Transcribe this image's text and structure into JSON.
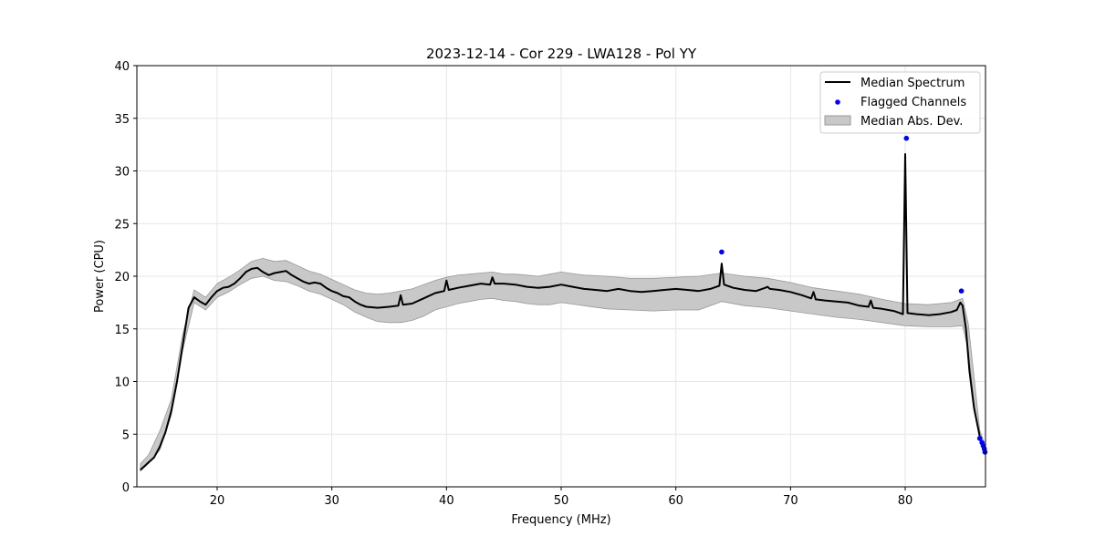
{
  "chart_data": {
    "type": "line",
    "title": "2023-12-14 - Cor 229 - LWA128 - Pol YY",
    "xlabel": "Frequency (MHz)",
    "ylabel": "Power (CPU)",
    "xlim": [
      13.0,
      87.0
    ],
    "ylim": [
      0,
      40
    ],
    "xticks": [
      20,
      30,
      40,
      50,
      60,
      70,
      80
    ],
    "yticks": [
      0,
      5,
      10,
      15,
      20,
      25,
      30,
      35,
      40
    ],
    "xtick_labels": [
      "20",
      "30",
      "40",
      "50",
      "60",
      "70",
      "80"
    ],
    "ytick_labels": [
      "0",
      "5",
      "10",
      "15",
      "20",
      "25",
      "30",
      "35",
      "40"
    ],
    "grid": true,
    "legend_position": "upper-right",
    "legend": [
      "Median Spectrum",
      "Flagged Channels",
      "Median Abs. Dev."
    ],
    "colors": {
      "median": "#000000",
      "flagged": "#0000ff",
      "band_fill": "#c8c8c8",
      "band_edge": "#999999",
      "grid": "#e6e6e6"
    },
    "median_spectrum": {
      "x": [
        13.3,
        13.6,
        14.0,
        14.5,
        15.0,
        15.5,
        16.0,
        16.5,
        17.0,
        17.5,
        18.0,
        18.5,
        19.0,
        19.5,
        20.0,
        20.5,
        21.0,
        21.5,
        22.0,
        22.5,
        23.0,
        23.5,
        24.0,
        24.5,
        25.0,
        25.5,
        26.0,
        26.5,
        27.0,
        27.5,
        28.0,
        28.5,
        29.0,
        29.5,
        30.0,
        30.5,
        31.0,
        31.5,
        32.0,
        32.5,
        33.0,
        34.0,
        35.0,
        35.8,
        36.0,
        36.2,
        37.0,
        38.0,
        39.0,
        39.8,
        40.0,
        40.2,
        41.0,
        42.0,
        43.0,
        43.8,
        44.0,
        44.2,
        45.0,
        46.0,
        47.0,
        48.0,
        49.0,
        50.0,
        51.0,
        52.0,
        53.0,
        54.0,
        55.0,
        56.0,
        57.0,
        58.0,
        59.0,
        60.0,
        61.0,
        62.0,
        63.0,
        63.8,
        64.0,
        64.2,
        65.0,
        66.0,
        67.0,
        67.8,
        68.0,
        68.2,
        69.0,
        70.0,
        71.0,
        71.8,
        72.0,
        72.2,
        73.0,
        74.0,
        75.0,
        76.0,
        76.8,
        77.0,
        77.2,
        78.0,
        79.0,
        79.8,
        80.0,
        80.2,
        81.0,
        82.0,
        83.0,
        84.0,
        84.5,
        84.8,
        85.0,
        85.3,
        85.6,
        86.0,
        86.5,
        86.8,
        87.0
      ],
      "y": [
        1.6,
        1.9,
        2.3,
        2.8,
        3.8,
        5.2,
        7.2,
        10.0,
        13.5,
        17.0,
        18.0,
        17.6,
        17.3,
        18.0,
        18.6,
        18.9,
        19.0,
        19.3,
        19.8,
        20.4,
        20.7,
        20.8,
        20.4,
        20.1,
        20.3,
        20.4,
        20.5,
        20.1,
        19.8,
        19.5,
        19.3,
        19.4,
        19.3,
        18.9,
        18.6,
        18.4,
        18.1,
        18.0,
        17.6,
        17.3,
        17.1,
        17.0,
        17.1,
        17.2,
        18.2,
        17.3,
        17.4,
        17.9,
        18.4,
        18.6,
        19.6,
        18.7,
        18.9,
        19.1,
        19.3,
        19.2,
        19.9,
        19.3,
        19.3,
        19.2,
        19.0,
        18.9,
        19.0,
        19.2,
        19.0,
        18.8,
        18.7,
        18.6,
        18.8,
        18.6,
        18.5,
        18.6,
        18.7,
        18.8,
        18.7,
        18.6,
        18.8,
        19.1,
        21.2,
        19.2,
        18.9,
        18.7,
        18.6,
        18.9,
        19.0,
        18.8,
        18.7,
        18.5,
        18.2,
        17.9,
        18.5,
        17.8,
        17.7,
        17.6,
        17.5,
        17.2,
        17.1,
        17.7,
        17.0,
        16.9,
        16.7,
        16.4,
        31.6,
        16.5,
        16.4,
        16.3,
        16.4,
        16.6,
        16.8,
        17.5,
        17.2,
        15.0,
        11.0,
        7.5,
        4.8,
        3.8,
        3.3
      ]
    },
    "mad_band": {
      "x": [
        13.3,
        14.0,
        15.0,
        16.0,
        17.0,
        18.0,
        19.0,
        20.0,
        21.0,
        22.0,
        23.0,
        24.0,
        25.0,
        26.0,
        27.0,
        28.0,
        29.0,
        30.0,
        31.0,
        32.0,
        33.0,
        34.0,
        35.0,
        36.0,
        37.0,
        38.0,
        39.0,
        40.0,
        41.0,
        42.0,
        43.0,
        44.0,
        45.0,
        46.0,
        47.0,
        48.0,
        49.0,
        50.0,
        52.0,
        54.0,
        56.0,
        58.0,
        60.0,
        62.0,
        64.0,
        66.0,
        68.0,
        70.0,
        72.0,
        74.0,
        76.0,
        78.0,
        80.0,
        82.0,
        84.0,
        85.0,
        85.5,
        86.0,
        86.5,
        87.0
      ],
      "low": [
        1.5,
        2.2,
        3.5,
        6.8,
        13.0,
        17.5,
        16.8,
        18.0,
        18.5,
        19.2,
        19.8,
        20.0,
        19.6,
        19.5,
        19.1,
        18.6,
        18.3,
        17.8,
        17.3,
        16.6,
        16.1,
        15.7,
        15.6,
        15.6,
        15.8,
        16.2,
        16.8,
        17.1,
        17.4,
        17.6,
        17.8,
        17.9,
        17.7,
        17.6,
        17.4,
        17.3,
        17.3,
        17.5,
        17.2,
        16.9,
        16.8,
        16.7,
        16.8,
        16.8,
        17.6,
        17.2,
        17.0,
        16.7,
        16.4,
        16.1,
        15.9,
        15.6,
        15.3,
        15.2,
        15.2,
        15.3,
        13.0,
        8.0,
        4.4,
        3.0
      ],
      "high": [
        2.2,
        3.0,
        5.3,
        8.3,
        14.5,
        18.7,
        18.0,
        19.3,
        19.9,
        20.6,
        21.4,
        21.7,
        21.4,
        21.5,
        21.0,
        20.5,
        20.2,
        19.7,
        19.2,
        18.7,
        18.4,
        18.3,
        18.4,
        18.6,
        18.8,
        19.2,
        19.6,
        19.9,
        20.1,
        20.2,
        20.3,
        20.4,
        20.2,
        20.2,
        20.1,
        20.0,
        20.2,
        20.4,
        20.1,
        20.0,
        19.8,
        19.8,
        19.9,
        20.0,
        20.3,
        20.0,
        19.8,
        19.4,
        18.9,
        18.6,
        18.3,
        17.8,
        17.4,
        17.3,
        17.5,
        17.9,
        15.5,
        10.5,
        5.4,
        3.8
      ]
    },
    "flagged_channels": {
      "x": [
        64.0,
        80.1,
        84.9,
        86.5,
        86.7,
        86.8,
        86.9,
        86.95
      ],
      "y": [
        22.3,
        33.1,
        18.6,
        4.6,
        4.2,
        3.9,
        3.6,
        3.3
      ]
    }
  }
}
